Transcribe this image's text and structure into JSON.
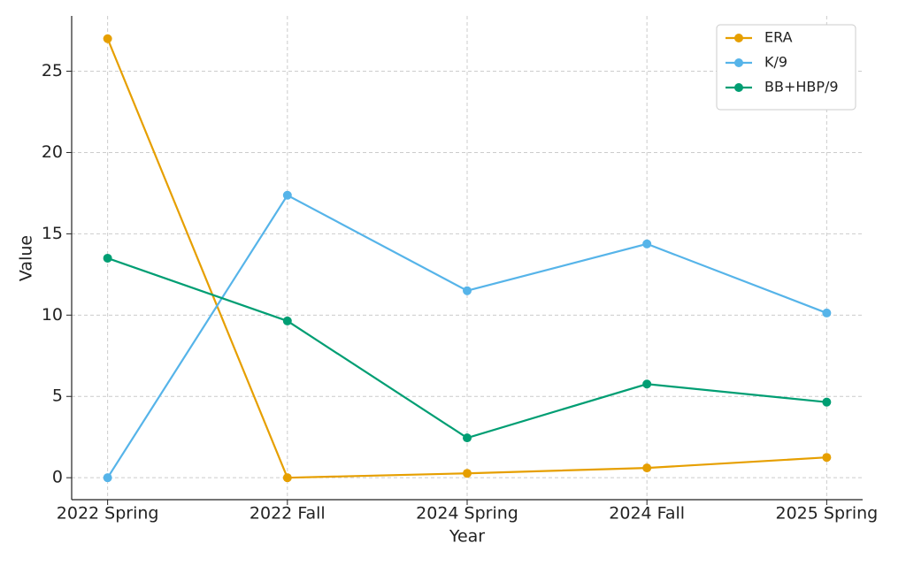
{
  "chart_data": {
    "type": "line",
    "x_label": "Year",
    "y_label": "Value",
    "categories": [
      "2022 Spring",
      "2022 Fall",
      "2024 Spring",
      "2024 Fall",
      "2025 Spring"
    ],
    "series": [
      {
        "name": "ERA",
        "color": "#e69f00",
        "values": [
          27.0,
          0.0,
          0.27,
          0.6,
          1.25
        ]
      },
      {
        "name": "K/9",
        "color": "#56b4e9",
        "values": [
          0.0,
          17.37,
          11.5,
          14.38,
          10.13
        ]
      },
      {
        "name": "BB+HBP/9",
        "color": "#009e73",
        "values": [
          13.5,
          9.64,
          2.45,
          5.76,
          4.65
        ]
      }
    ],
    "ylim": [
      -1.35,
      28.4
    ],
    "yticks": [
      0,
      5,
      10,
      15,
      20,
      25
    ],
    "grid": true,
    "legend": "upper right"
  }
}
